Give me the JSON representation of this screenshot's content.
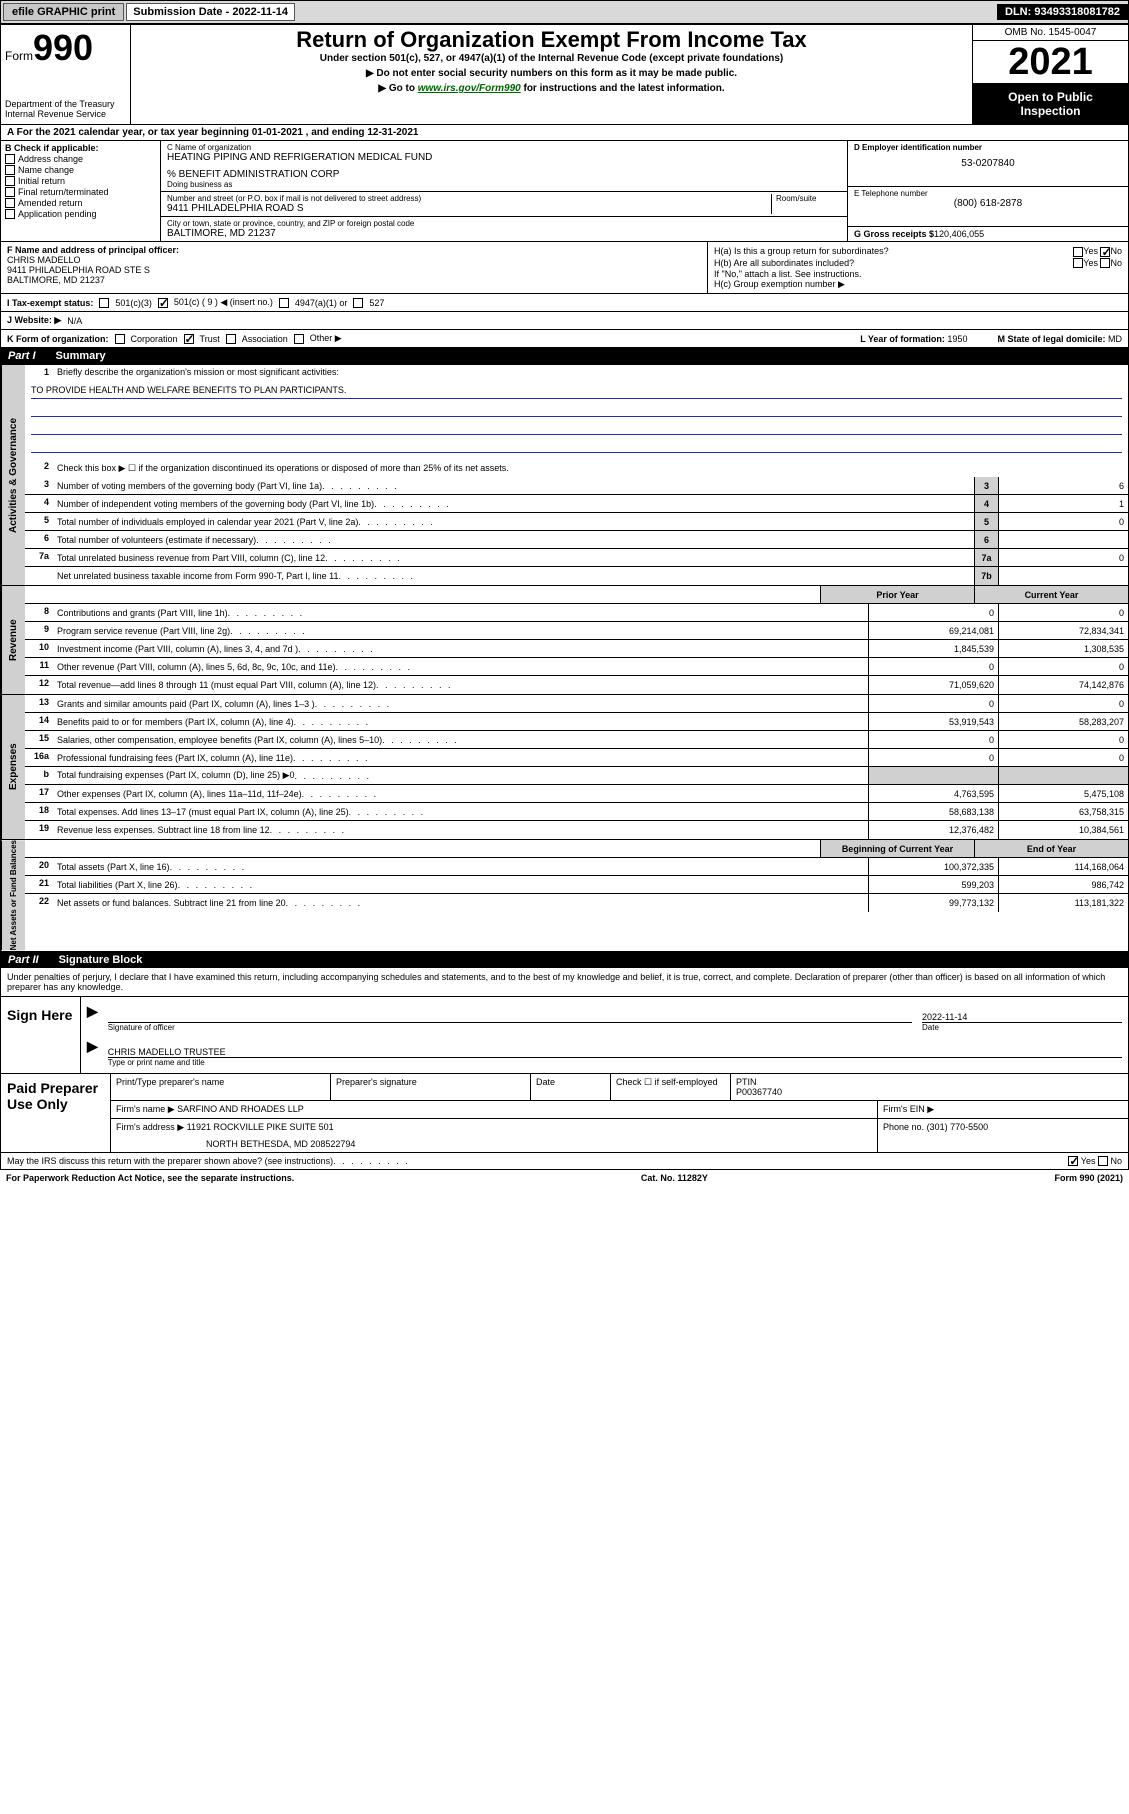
{
  "top": {
    "efile": "efile GRAPHIC print",
    "submission_label": "Submission Date - 2022-11-14",
    "dln": "DLN: 93493318081782"
  },
  "header": {
    "form_word": "Form",
    "form_num": "990",
    "title": "Return of Organization Exempt From Income Tax",
    "sub1": "Under section 501(c), 527, or 4947(a)(1) of the Internal Revenue Code (except private foundations)",
    "sub2": "▶ Do not enter social security numbers on this form as it may be made public.",
    "sub3_pre": "▶ Go to ",
    "sub3_link": "www.irs.gov/Form990",
    "sub3_post": " for instructions and the latest information.",
    "dept": "Department of the Treasury",
    "irs": "Internal Revenue Service",
    "omb": "OMB No. 1545-0047",
    "year": "2021",
    "open": "Open to Public Inspection"
  },
  "rowA": "A For the 2021 calendar year, or tax year beginning 01-01-2021    , and ending 12-31-2021",
  "colB": {
    "label": "B Check if applicable:",
    "items": [
      "Address change",
      "Name change",
      "Initial return",
      "Final return/terminated",
      "Amended return",
      "Application pending"
    ]
  },
  "colC": {
    "name_label": "C Name of organization",
    "name": "HEATING PIPING AND REFRIGERATION MEDICAL FUND",
    "care_of": "% BENEFIT ADMINISTRATION CORP",
    "dba_label": "Doing business as",
    "addr_label": "Number and street (or P.O. box if mail is not delivered to street address)",
    "room_label": "Room/suite",
    "addr": "9411 PHILADELPHIA ROAD S",
    "city_label": "City or town, state or province, country, and ZIP or foreign postal code",
    "city": "BALTIMORE, MD  21237"
  },
  "colD": {
    "ein_label": "D Employer identification number",
    "ein": "53-0207840",
    "phone_label": "E Telephone number",
    "phone": "(800) 618-2878",
    "gross_label": "G Gross receipts $",
    "gross": "120,406,055"
  },
  "rowF": {
    "label": "F  Name and address of principal officer:",
    "name": "CHRIS MADELLO",
    "addr1": "9411 PHILADELPHIA ROAD STE S",
    "addr2": "BALTIMORE, MD  21237"
  },
  "rowH": {
    "ha": "H(a)  Is this a group return for subordinates?",
    "hb": "H(b)  Are all subordinates included?",
    "hb_note": "If \"No,\" attach a list. See instructions.",
    "hc": "H(c)  Group exemption number ▶"
  },
  "rowI": {
    "label": "I   Tax-exempt status:",
    "c3": "501(c)(3)",
    "c_other": "501(c) ( 9 ) ◀ (insert no.)",
    "a4947": "4947(a)(1) or",
    "s527": "527"
  },
  "rowJ": {
    "label": "J   Website: ▶",
    "val": "N/A"
  },
  "rowK": {
    "label": "K Form of organization:",
    "opts": [
      "Corporation",
      "Trust",
      "Association",
      "Other ▶"
    ],
    "year_label": "L Year of formation: ",
    "year": "1950",
    "state_label": "M State of legal domicile:",
    "state": "MD"
  },
  "part1": {
    "title": "Part I",
    "name": "Summary",
    "line1_label": "Briefly describe the organization's mission or most significant activities:",
    "mission": "TO PROVIDE HEALTH AND WELFARE BENEFITS TO PLAN PARTICIPANTS.",
    "line2": "Check this box ▶ ☐  if the organization discontinued its operations or disposed of more than 25% of its net assets.",
    "gov_rows": [
      {
        "n": "3",
        "t": "Number of voting members of the governing body (Part VI, line 1a)",
        "c": "3",
        "v": "6"
      },
      {
        "n": "4",
        "t": "Number of independent voting members of the governing body (Part VI, line 1b)",
        "c": "4",
        "v": "1"
      },
      {
        "n": "5",
        "t": "Total number of individuals employed in calendar year 2021 (Part V, line 2a)",
        "c": "5",
        "v": "0"
      },
      {
        "n": "6",
        "t": "Total number of volunteers (estimate if necessary)",
        "c": "6",
        "v": ""
      },
      {
        "n": "7a",
        "t": "Total unrelated business revenue from Part VIII, column (C), line 12",
        "c": "7a",
        "v": "0"
      },
      {
        "n": "",
        "t": "Net unrelated business taxable income from Form 990-T, Part I, line 11",
        "c": "7b",
        "v": ""
      }
    ],
    "head_prior": "Prior Year",
    "head_current": "Current Year",
    "rev_rows": [
      {
        "n": "8",
        "t": "Contributions and grants (Part VIII, line 1h)",
        "p": "0",
        "c": "0"
      },
      {
        "n": "9",
        "t": "Program service revenue (Part VIII, line 2g)",
        "p": "69,214,081",
        "c": "72,834,341"
      },
      {
        "n": "10",
        "t": "Investment income (Part VIII, column (A), lines 3, 4, and 7d )",
        "p": "1,845,539",
        "c": "1,308,535"
      },
      {
        "n": "11",
        "t": "Other revenue (Part VIII, column (A), lines 5, 6d, 8c, 9c, 10c, and 11e)",
        "p": "0",
        "c": "0"
      },
      {
        "n": "12",
        "t": "Total revenue—add lines 8 through 11 (must equal Part VIII, column (A), line 12)",
        "p": "71,059,620",
        "c": "74,142,876"
      }
    ],
    "exp_rows": [
      {
        "n": "13",
        "t": "Grants and similar amounts paid (Part IX, column (A), lines 1–3 )",
        "p": "0",
        "c": "0"
      },
      {
        "n": "14",
        "t": "Benefits paid to or for members (Part IX, column (A), line 4)",
        "p": "53,919,543",
        "c": "58,283,207"
      },
      {
        "n": "15",
        "t": "Salaries, other compensation, employee benefits (Part IX, column (A), lines 5–10)",
        "p": "0",
        "c": "0"
      },
      {
        "n": "16a",
        "t": "Professional fundraising fees (Part IX, column (A), line 11e)",
        "p": "0",
        "c": "0"
      },
      {
        "n": "b",
        "t": "Total fundraising expenses (Part IX, column (D), line 25) ▶0",
        "p": "",
        "c": "",
        "shade": true
      },
      {
        "n": "17",
        "t": "Other expenses (Part IX, column (A), lines 11a–11d, 11f–24e)",
        "p": "4,763,595",
        "c": "5,475,108"
      },
      {
        "n": "18",
        "t": "Total expenses. Add lines 13–17 (must equal Part IX, column (A), line 25)",
        "p": "58,683,138",
        "c": "63,758,315"
      },
      {
        "n": "19",
        "t": "Revenue less expenses. Subtract line 18 from line 12",
        "p": "12,376,482",
        "c": "10,384,561"
      }
    ],
    "head_begin": "Beginning of Current Year",
    "head_end": "End of Year",
    "net_rows": [
      {
        "n": "20",
        "t": "Total assets (Part X, line 16)",
        "p": "100,372,335",
        "c": "114,168,064"
      },
      {
        "n": "21",
        "t": "Total liabilities (Part X, line 26)",
        "p": "599,203",
        "c": "986,742"
      },
      {
        "n": "22",
        "t": "Net assets or fund balances. Subtract line 21 from line 20",
        "p": "99,773,132",
        "c": "113,181,322"
      }
    ]
  },
  "part2": {
    "title": "Part II",
    "name": "Signature Block"
  },
  "sig": {
    "intro": "Under penalties of perjury, I declare that I have examined this return, including accompanying schedules and statements, and to the best of my knowledge and belief, it is true, correct, and complete. Declaration of preparer (other than officer) is based on all information of which preparer has any knowledge.",
    "sign_here": "Sign Here",
    "sig_label": "Signature of officer",
    "date": "2022-11-14",
    "date_label": "Date",
    "name": "CHRIS MADELLO  TRUSTEE",
    "name_label": "Type or print name and title"
  },
  "paid": {
    "title": "Paid Preparer Use Only",
    "col1": "Print/Type preparer's name",
    "col2": "Preparer's signature",
    "col3": "Date",
    "col4a": "Check ☐ if self-employed",
    "col5_label": "PTIN",
    "col5": "P00367740",
    "firm_label": "Firm's name    ▶",
    "firm": "SARFINO AND RHOADES LLP",
    "ein_label": "Firm's EIN ▶",
    "addr_label": "Firm's address ▶",
    "addr1": "11921 ROCKVILLE PIKE SUITE 501",
    "addr2": "NORTH BETHESDA, MD  208522794",
    "phone_label": "Phone no.",
    "phone": "(301) 770-5500"
  },
  "footer": {
    "discuss": "May the IRS discuss this return with the preparer shown above? (see instructions)",
    "paperwork": "For Paperwork Reduction Act Notice, see the separate instructions.",
    "cat": "Cat. No. 11282Y",
    "formref": "Form 990 (2021)"
  },
  "yn": {
    "yes": "Yes",
    "no": "No"
  }
}
